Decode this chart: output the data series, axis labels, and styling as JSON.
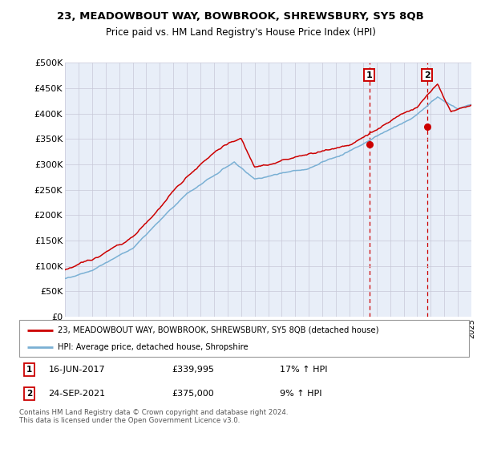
{
  "title1": "23, MEADOWBOUT WAY, BOWBROOK, SHREWSBURY, SY5 8QB",
  "title2": "Price paid vs. HM Land Registry's House Price Index (HPI)",
  "ylabel_ticks": [
    "£0",
    "£50K",
    "£100K",
    "£150K",
    "£200K",
    "£250K",
    "£300K",
    "£350K",
    "£400K",
    "£450K",
    "£500K"
  ],
  "ytick_values": [
    0,
    50000,
    100000,
    150000,
    200000,
    250000,
    300000,
    350000,
    400000,
    450000,
    500000
  ],
  "x_start_year": 1995,
  "x_end_year": 2025,
  "transaction1_date": "16-JUN-2017",
  "transaction1_price": 339995,
  "transaction1_hpi": "17% ↑ HPI",
  "transaction1_x": 2017.46,
  "transaction2_date": "24-SEP-2021",
  "transaction2_price": 375000,
  "transaction2_hpi": "9% ↑ HPI",
  "transaction2_x": 2021.73,
  "legend_line1": "23, MEADOWBOUT WAY, BOWBROOK, SHREWSBURY, SY5 8QB (detached house)",
  "legend_line2": "HPI: Average price, detached house, Shropshire",
  "footer": "Contains HM Land Registry data © Crown copyright and database right 2024.\nThis data is licensed under the Open Government Licence v3.0.",
  "line_color_red": "#cc0000",
  "line_color_blue": "#7ab0d4",
  "bg_color": "#e8eef8",
  "plot_bg": "#ffffff"
}
